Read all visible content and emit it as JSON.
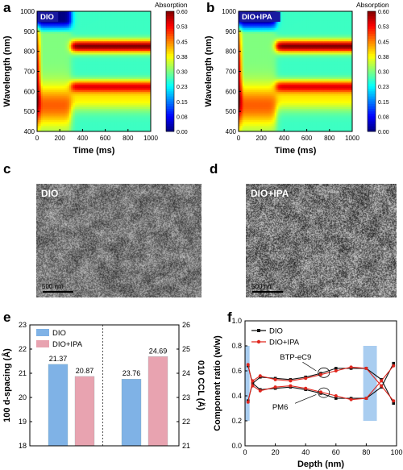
{
  "panels": {
    "a": {
      "letter": "a",
      "tag": "DIO"
    },
    "b": {
      "letter": "b",
      "tag": "DIO+IPA"
    },
    "c": {
      "letter": "c",
      "tag": "DIO",
      "scale": "500 nm"
    },
    "d": {
      "letter": "d",
      "tag": "DIO+IPA",
      "scale": "500 nm"
    },
    "e": {
      "letter": "e"
    },
    "f": {
      "letter": "f"
    }
  },
  "chart_data": [
    {
      "id": "a",
      "type": "heatmap",
      "xlabel": "Time (ms)",
      "ylabel": "Wavelength (nm)",
      "colorbar_label": "Absorption",
      "x_ticks": [
        0,
        200,
        400,
        600,
        800,
        1000
      ],
      "y_ticks": [
        400,
        500,
        600,
        700,
        800,
        900,
        1000
      ],
      "xlim": [
        0,
        1000
      ],
      "ylim": [
        400,
        1000
      ],
      "colorbar_ticks": [
        "0.00",
        "0.08",
        "0.15",
        "0.23",
        "0.30",
        "0.38",
        "0.45",
        "0.53",
        "0.60"
      ],
      "clim": [
        0,
        0.6
      ],
      "transition_ms": 300
    },
    {
      "id": "b",
      "type": "heatmap",
      "xlabel": "Time (ms)",
      "ylabel": "Wavelength (nm)",
      "colorbar_label": "Absorption",
      "x_ticks": [
        0,
        200,
        400,
        600,
        800,
        1000
      ],
      "y_ticks": [
        400,
        500,
        600,
        700,
        800,
        900,
        1000
      ],
      "xlim": [
        0,
        1000
      ],
      "ylim": [
        400,
        1000
      ],
      "colorbar_ticks": [
        "0.00",
        "0.08",
        "0.15",
        "0.23",
        "0.30",
        "0.38",
        "0.45",
        "0.53",
        "0.60"
      ],
      "clim": [
        0,
        0.6
      ],
      "transition_ms": 330
    },
    {
      "id": "e",
      "type": "bar",
      "left_axis": {
        "label": "100 d-spacing (Å)",
        "ticks": [
          18,
          19,
          20,
          21,
          22,
          23
        ],
        "ylim": [
          18,
          23
        ]
      },
      "right_axis": {
        "label": "010 CCL (Å)",
        "ticks": [
          21,
          22,
          23,
          24,
          25,
          26
        ],
        "ylim": [
          21,
          26
        ]
      },
      "series": [
        {
          "name": "DIO",
          "color": "#7fb2e6",
          "values": [
            21.37,
            23.76
          ],
          "labels": [
            "21.37",
            "23.76"
          ]
        },
        {
          "name": "DIO+IPA",
          "color": "#e8a3b0",
          "values": [
            20.87,
            24.69
          ],
          "labels": [
            "20.87",
            "24.69"
          ]
        }
      ]
    },
    {
      "id": "f",
      "type": "line",
      "xlabel": "Depth (nm)",
      "ylabel": "Component ratio (w/w)",
      "x_ticks": [
        0,
        20,
        40,
        60,
        80,
        100
      ],
      "y_ticks": [
        "0.0",
        "0.2",
        "0.4",
        "0.6",
        "0.8",
        "1.0"
      ],
      "xlim": [
        0,
        100
      ],
      "ylim": [
        0,
        1
      ],
      "annotations": [
        "BTP-eC9",
        "PM6"
      ],
      "shaded": [
        [
          0,
          3
        ],
        [
          78,
          87
        ]
      ],
      "series": [
        {
          "name": "DIO",
          "color": "#111111",
          "marker": "square",
          "x": [
            2,
            5,
            10,
            20,
            30,
            40,
            50,
            60,
            70,
            80,
            90,
            98
          ],
          "top": [
            0.64,
            0.5,
            0.55,
            0.54,
            0.53,
            0.55,
            0.58,
            0.62,
            0.62,
            0.62,
            0.53,
            0.34
          ],
          "bottom": [
            0.36,
            0.5,
            0.45,
            0.46,
            0.47,
            0.45,
            0.42,
            0.38,
            0.38,
            0.38,
            0.47,
            0.66
          ]
        },
        {
          "name": "DIO+IPA",
          "color": "#e0271e",
          "marker": "circle",
          "x": [
            2,
            5,
            10,
            20,
            30,
            40,
            50,
            60,
            70,
            80,
            90,
            98
          ],
          "top": [
            0.35,
            0.52,
            0.56,
            0.53,
            0.52,
            0.54,
            0.57,
            0.6,
            0.63,
            0.62,
            0.48,
            0.36
          ],
          "bottom": [
            0.65,
            0.48,
            0.44,
            0.47,
            0.48,
            0.46,
            0.43,
            0.4,
            0.37,
            0.38,
            0.52,
            0.64
          ]
        }
      ]
    }
  ]
}
